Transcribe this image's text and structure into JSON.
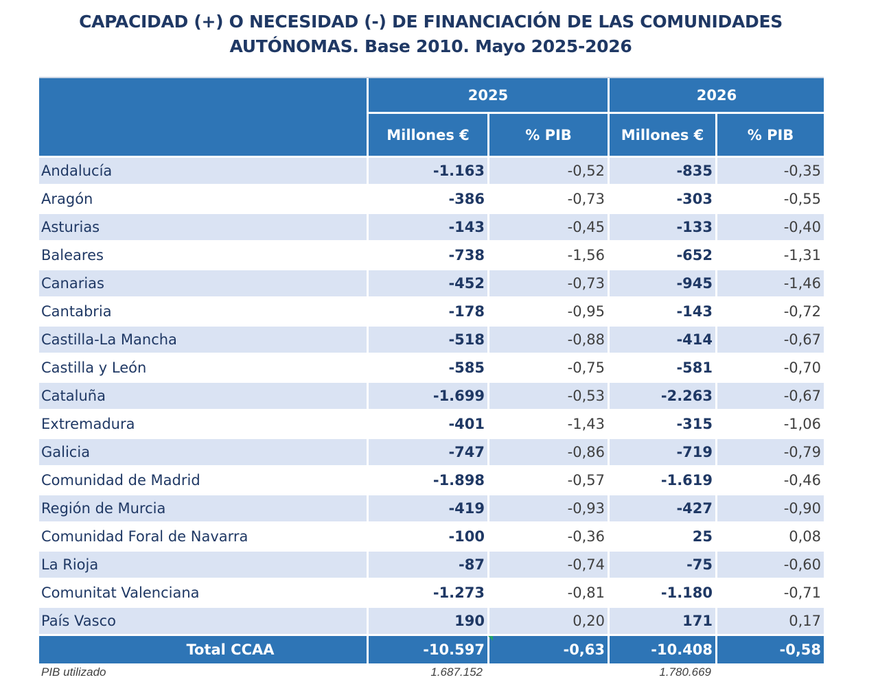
{
  "title": {
    "line1": "CAPACIDAD (+) O NECESIDAD (-) DE FINANCIACIÓN DE LAS COMUNIDADES",
    "line2": "AUTÓNOMAS. Base 2010. Mayo 2025-2026"
  },
  "header": {
    "year1": "2025",
    "year2": "2026",
    "col_millones": "Millones €",
    "col_pib": "% PIB"
  },
  "rows": [
    {
      "name": "Andalucía",
      "m2025": "-1.163",
      "p2025": "-0,52",
      "m2026": "-835",
      "p2026": "-0,35"
    },
    {
      "name": "Aragón",
      "m2025": "-386",
      "p2025": "-0,73",
      "m2026": "-303",
      "p2026": "-0,55"
    },
    {
      "name": "Asturias",
      "m2025": "-143",
      "p2025": "-0,45",
      "m2026": "-133",
      "p2026": "-0,40"
    },
    {
      "name": "Baleares",
      "m2025": "-738",
      "p2025": "-1,56",
      "m2026": "-652",
      "p2026": "-1,31"
    },
    {
      "name": "Canarias",
      "m2025": "-452",
      "p2025": "-0,73",
      "m2026": "-945",
      "p2026": "-1,46"
    },
    {
      "name": "Cantabria",
      "m2025": "-178",
      "p2025": "-0,95",
      "m2026": "-143",
      "p2026": "-0,72"
    },
    {
      "name": "Castilla-La Mancha",
      "m2025": "-518",
      "p2025": "-0,88",
      "m2026": "-414",
      "p2026": "-0,67"
    },
    {
      "name": "Castilla y León",
      "m2025": "-585",
      "p2025": "-0,75",
      "m2026": "-581",
      "p2026": "-0,70"
    },
    {
      "name": "Cataluña",
      "m2025": "-1.699",
      "p2025": "-0,53",
      "m2026": "-2.263",
      "p2026": "-0,67"
    },
    {
      "name": "Extremadura",
      "m2025": "-401",
      "p2025": "-1,43",
      "m2026": "-315",
      "p2026": "-1,06"
    },
    {
      "name": "Galicia",
      "m2025": "-747",
      "p2025": "-0,86",
      "m2026": "-719",
      "p2026": "-0,79"
    },
    {
      "name": "Comunidad de Madrid",
      "m2025": "-1.898",
      "p2025": "-0,57",
      "m2026": "-1.619",
      "p2026": "-0,46"
    },
    {
      "name": "Región de Murcia",
      "m2025": "-419",
      "p2025": "-0,93",
      "m2026": "-427",
      "p2026": "-0,90"
    },
    {
      "name": "Comunidad Foral de Navarra",
      "m2025": "-100",
      "p2025": "-0,36",
      "m2026": "25",
      "p2026": "0,08"
    },
    {
      "name": "La Rioja",
      "m2025": "-87",
      "p2025": "-0,74",
      "m2026": "-75",
      "p2026": "-0,60"
    },
    {
      "name": "Comunitat Valenciana",
      "m2025": "-1.273",
      "p2025": "-0,81",
      "m2026": "-1.180",
      "p2026": "-0,71"
    },
    {
      "name": "País Vasco",
      "m2025": "190",
      "p2025": "0,20",
      "m2026": "171",
      "p2026": "0,17"
    }
  ],
  "total": {
    "name": "Total CCAA",
    "m2025": "-10.597",
    "p2025": "-0,63",
    "m2026": "-10.408",
    "p2026": "-0,58"
  },
  "footer": {
    "label": "PIB utilizado",
    "v2025": "1.687.152",
    "v2026": "1.780.669"
  },
  "colors": {
    "header_bg": "#2e75b6",
    "band": "#dae3f3",
    "title": "#1f3864"
  }
}
